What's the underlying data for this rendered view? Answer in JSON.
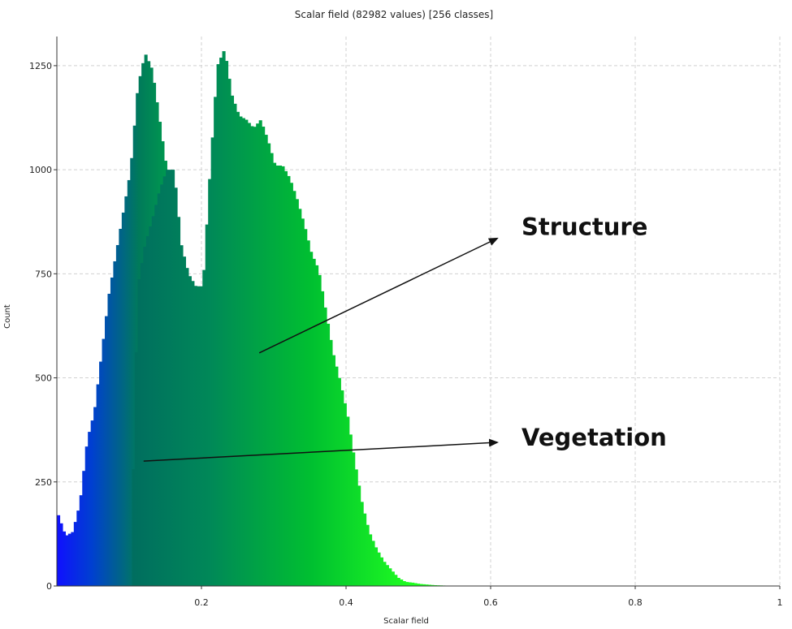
{
  "chart_data": {
    "type": "bar",
    "title": "Scalar field (82982 values)  [256 classes]",
    "xlabel": "Scalar field",
    "ylabel": "Count",
    "xlim": [
      0,
      1
    ],
    "ylim": [
      0,
      1320
    ],
    "x_ticks": [
      0.2,
      0.4,
      0.6,
      0.8,
      1
    ],
    "x_tick_labels": [
      "0.2",
      "0.4",
      "0.6",
      "0.8",
      "1"
    ],
    "y_ticks": [
      0,
      250,
      500,
      750,
      1000,
      1250
    ],
    "y_tick_labels": [
      "0",
      "250",
      "500",
      "750",
      "1000",
      "1250"
    ],
    "grid": true,
    "colormap": "blue-green-yellow-red",
    "colors": {
      "axis": "#333333",
      "grid": "#d0d0d0",
      "background": "#ffffff"
    },
    "bin_width": 0.0039,
    "series": [
      {
        "x": [
          0.0,
          0.01,
          0.02,
          0.03,
          0.04,
          0.05,
          0.06,
          0.07,
          0.08,
          0.09,
          0.1,
          0.11,
          0.12,
          0.13,
          0.14,
          0.15,
          0.16,
          0.17,
          0.18,
          0.19,
          0.2,
          0.21,
          0.22,
          0.23,
          0.24,
          0.25,
          0.26,
          0.27,
          0.28,
          0.29,
          0.3,
          0.31,
          0.32,
          0.33,
          0.34,
          0.35,
          0.36,
          0.37,
          0.38,
          0.39,
          0.4,
          0.41,
          0.42,
          0.43,
          0.44,
          0.45,
          0.46,
          0.47,
          0.48,
          0.5,
          0.52,
          0.55,
          0.6,
          0.65,
          0.7,
          0.8,
          0.9,
          1.0
        ],
        "values": [
          170,
          120,
          130,
          200,
          350,
          420,
          560,
          700,
          800,
          900,
          1000,
          1200,
          1280,
          1240,
          1120,
          1000,
          900,
          780,
          700,
          580,
          420,
          350,
          310,
          270,
          240,
          210,
          180,
          150,
          130,
          110,
          95,
          80,
          70,
          60,
          50,
          40,
          35,
          30,
          22,
          15,
          12,
          10,
          8,
          6,
          5,
          4,
          3,
          2,
          2,
          1,
          1,
          0,
          0,
          0,
          0,
          0,
          0,
          0
        ]
      },
      {
        "x": [
          0.1,
          0.11,
          0.12,
          0.13,
          0.14,
          0.15,
          0.16,
          0.17,
          0.18,
          0.19,
          0.2,
          0.21,
          0.22,
          0.23,
          0.24,
          0.25,
          0.26,
          0.27,
          0.28,
          0.29,
          0.3,
          0.31,
          0.32,
          0.33,
          0.34,
          0.35,
          0.36,
          0.37,
          0.38,
          0.39,
          0.4,
          0.41,
          0.42,
          0.43,
          0.44,
          0.45,
          0.46,
          0.47,
          0.48,
          0.49,
          0.5,
          0.52,
          0.55,
          0.6
        ],
        "values": [
          0,
          720,
          820,
          880,
          950,
          1000,
          1000,
          820,
          750,
          720,
          720,
          1000,
          1250,
          1290,
          1180,
          1130,
          1120,
          1100,
          1120,
          1070,
          1010,
          1010,
          980,
          930,
          870,
          800,
          760,
          660,
          560,
          490,
          410,
          300,
          200,
          130,
          90,
          60,
          40,
          20,
          10,
          8,
          5,
          2,
          0,
          0
        ]
      }
    ],
    "annotations": [
      {
        "text": "Structure",
        "arrow_from": [
          0.28,
          560
        ],
        "arrow_to": [
          0.6,
          835
        ]
      },
      {
        "text": "Vegetation",
        "arrow_from": [
          0.12,
          300
        ],
        "arrow_to": [
          0.6,
          345
        ]
      }
    ]
  }
}
